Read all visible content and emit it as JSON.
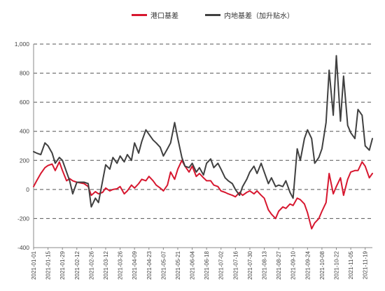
{
  "chart_data": {
    "type": "line",
    "title": "",
    "xlabel": "",
    "ylabel": "",
    "ylim": [
      -400,
      1000
    ],
    "yticks": [
      -400,
      -200,
      0,
      200,
      400,
      600,
      800,
      1000
    ],
    "ytick_labels": [
      "-400",
      "-200",
      "0",
      "200",
      "400",
      "600",
      "800",
      "1,000"
    ],
    "grid": "horizontal-dashed",
    "legend_position": "top-center",
    "x_range": [
      "2021-01-01",
      "2021-11-26"
    ],
    "xtick_labels": [
      "2021-01-01",
      "2021-01-15",
      "2021-01-29",
      "2021-02-12",
      "2021-02-26",
      "2021-03-12",
      "2021-03-26",
      "2021-04-09",
      "2021-04-23",
      "2021-05-07",
      "2021-05-21",
      "2021-06-04",
      "2021-06-18",
      "2021-07-02",
      "2021-07-16",
      "2021-07-30",
      "2021-08-13",
      "2021-08-27",
      "2021-09-10",
      "2021-09-24",
      "2021-10-08",
      "2021-10-22",
      "2021-11-05",
      "2021-11-19"
    ],
    "series": [
      {
        "name": "港口基差",
        "color": "#d7172f",
        "points": [
          [
            "2021-01-01",
            20
          ],
          [
            "2021-01-04",
            60
          ],
          [
            "2021-01-08",
            110
          ],
          [
            "2021-01-12",
            150
          ],
          [
            "2021-01-15",
            165
          ],
          [
            "2021-01-19",
            175
          ],
          [
            "2021-01-22",
            130
          ],
          [
            "2021-01-26",
            190
          ],
          [
            "2021-01-29",
            130
          ],
          [
            "2021-02-02",
            60
          ],
          [
            "2021-02-05",
            75
          ],
          [
            "2021-02-08",
            60
          ],
          [
            "2021-02-12",
            50
          ],
          [
            "2021-02-19",
            40
          ],
          [
            "2021-02-23",
            20
          ],
          [
            "2021-02-26",
            -40
          ],
          [
            "2021-03-02",
            -15
          ],
          [
            "2021-03-05",
            -30
          ],
          [
            "2021-03-09",
            -20
          ],
          [
            "2021-03-12",
            10
          ],
          [
            "2021-03-16",
            -10
          ],
          [
            "2021-03-19",
            0
          ],
          [
            "2021-03-23",
            5
          ],
          [
            "2021-03-26",
            20
          ],
          [
            "2021-03-30",
            -30
          ],
          [
            "2021-04-02",
            -10
          ],
          [
            "2021-04-06",
            30
          ],
          [
            "2021-04-09",
            10
          ],
          [
            "2021-04-13",
            40
          ],
          [
            "2021-04-16",
            70
          ],
          [
            "2021-04-20",
            60
          ],
          [
            "2021-04-23",
            90
          ],
          [
            "2021-04-27",
            60
          ],
          [
            "2021-04-30",
            30
          ],
          [
            "2021-05-04",
            10
          ],
          [
            "2021-05-07",
            -10
          ],
          [
            "2021-05-11",
            30
          ],
          [
            "2021-05-14",
            120
          ],
          [
            "2021-05-18",
            70
          ],
          [
            "2021-05-21",
            140
          ],
          [
            "2021-05-25",
            200
          ],
          [
            "2021-05-28",
            160
          ],
          [
            "2021-06-01",
            120
          ],
          [
            "2021-06-04",
            160
          ],
          [
            "2021-06-08",
            90
          ],
          [
            "2021-06-11",
            110
          ],
          [
            "2021-06-15",
            80
          ],
          [
            "2021-06-18",
            60
          ],
          [
            "2021-06-22",
            60
          ],
          [
            "2021-06-25",
            30
          ],
          [
            "2021-06-29",
            20
          ],
          [
            "2021-07-02",
            -10
          ],
          [
            "2021-07-06",
            -20
          ],
          [
            "2021-07-09",
            -30
          ],
          [
            "2021-07-13",
            -40
          ],
          [
            "2021-07-16",
            -50
          ],
          [
            "2021-07-20",
            -20
          ],
          [
            "2021-07-23",
            -40
          ],
          [
            "2021-07-27",
            -20
          ],
          [
            "2021-07-30",
            -10
          ],
          [
            "2021-08-03",
            -30
          ],
          [
            "2021-08-06",
            -10
          ],
          [
            "2021-08-10",
            -40
          ],
          [
            "2021-08-13",
            -60
          ],
          [
            "2021-08-17",
            -140
          ],
          [
            "2021-08-20",
            -170
          ],
          [
            "2021-08-24",
            -200
          ],
          [
            "2021-08-27",
            -150
          ],
          [
            "2021-08-31",
            -120
          ],
          [
            "2021-09-03",
            -130
          ],
          [
            "2021-09-07",
            -100
          ],
          [
            "2021-09-10",
            -110
          ],
          [
            "2021-09-14",
            -60
          ],
          [
            "2021-09-17",
            -70
          ],
          [
            "2021-09-21",
            -100
          ],
          [
            "2021-09-24",
            -160
          ],
          [
            "2021-09-28",
            -270
          ],
          [
            "2021-10-01",
            -230
          ],
          [
            "2021-10-05",
            -200
          ],
          [
            "2021-10-08",
            -150
          ],
          [
            "2021-10-12",
            -90
          ],
          [
            "2021-10-15",
            110
          ],
          [
            "2021-10-19",
            -30
          ],
          [
            "2021-10-22",
            20
          ],
          [
            "2021-10-26",
            80
          ],
          [
            "2021-10-29",
            -40
          ],
          [
            "2021-11-02",
            70
          ],
          [
            "2021-11-05",
            120
          ],
          [
            "2021-11-09",
            130
          ],
          [
            "2021-11-12",
            130
          ],
          [
            "2021-11-16",
            190
          ],
          [
            "2021-11-19",
            160
          ],
          [
            "2021-11-23",
            80
          ],
          [
            "2021-11-26",
            110
          ]
        ]
      },
      {
        "name": "内地基差（加升贴水）",
        "color": "#404040",
        "points": [
          [
            "2021-01-01",
            260
          ],
          [
            "2021-01-04",
            250
          ],
          [
            "2021-01-08",
            240
          ],
          [
            "2021-01-12",
            320
          ],
          [
            "2021-01-15",
            300
          ],
          [
            "2021-01-19",
            250
          ],
          [
            "2021-01-22",
            180
          ],
          [
            "2021-01-26",
            220
          ],
          [
            "2021-01-29",
            200
          ],
          [
            "2021-02-02",
            120
          ],
          [
            "2021-02-05",
            60
          ],
          [
            "2021-02-08",
            -30
          ],
          [
            "2021-02-12",
            50
          ],
          [
            "2021-02-19",
            50
          ],
          [
            "2021-02-23",
            40
          ],
          [
            "2021-02-26",
            -120
          ],
          [
            "2021-03-02",
            -60
          ],
          [
            "2021-03-05",
            -90
          ],
          [
            "2021-03-09",
            60
          ],
          [
            "2021-03-12",
            170
          ],
          [
            "2021-03-16",
            140
          ],
          [
            "2021-03-19",
            220
          ],
          [
            "2021-03-23",
            180
          ],
          [
            "2021-03-26",
            230
          ],
          [
            "2021-03-30",
            190
          ],
          [
            "2021-04-02",
            240
          ],
          [
            "2021-04-06",
            200
          ],
          [
            "2021-04-09",
            320
          ],
          [
            "2021-04-13",
            250
          ],
          [
            "2021-04-16",
            330
          ],
          [
            "2021-04-20",
            410
          ],
          [
            "2021-04-23",
            380
          ],
          [
            "2021-04-27",
            340
          ],
          [
            "2021-04-30",
            320
          ],
          [
            "2021-05-04",
            290
          ],
          [
            "2021-05-07",
            230
          ],
          [
            "2021-05-11",
            280
          ],
          [
            "2021-05-14",
            320
          ],
          [
            "2021-05-18",
            460
          ],
          [
            "2021-05-21",
            350
          ],
          [
            "2021-05-25",
            220
          ],
          [
            "2021-05-28",
            160
          ],
          [
            "2021-06-01",
            150
          ],
          [
            "2021-06-04",
            180
          ],
          [
            "2021-06-08",
            120
          ],
          [
            "2021-06-11",
            150
          ],
          [
            "2021-06-15",
            100
          ],
          [
            "2021-06-18",
            180
          ],
          [
            "2021-06-22",
            210
          ],
          [
            "2021-06-25",
            150
          ],
          [
            "2021-06-29",
            180
          ],
          [
            "2021-07-02",
            140
          ],
          [
            "2021-07-06",
            80
          ],
          [
            "2021-07-09",
            60
          ],
          [
            "2021-07-13",
            40
          ],
          [
            "2021-07-16",
            0
          ],
          [
            "2021-07-20",
            -40
          ],
          [
            "2021-07-23",
            20
          ],
          [
            "2021-07-27",
            70
          ],
          [
            "2021-07-30",
            120
          ],
          [
            "2021-08-03",
            160
          ],
          [
            "2021-08-06",
            110
          ],
          [
            "2021-08-10",
            180
          ],
          [
            "2021-08-13",
            120
          ],
          [
            "2021-08-17",
            40
          ],
          [
            "2021-08-20",
            80
          ],
          [
            "2021-08-24",
            20
          ],
          [
            "2021-08-27",
            30
          ],
          [
            "2021-08-31",
            20
          ],
          [
            "2021-09-03",
            60
          ],
          [
            "2021-09-07",
            -20
          ],
          [
            "2021-09-10",
            -60
          ],
          [
            "2021-09-14",
            280
          ],
          [
            "2021-09-17",
            200
          ],
          [
            "2021-09-21",
            350
          ],
          [
            "2021-09-24",
            410
          ],
          [
            "2021-09-28",
            350
          ],
          [
            "2021-10-01",
            180
          ],
          [
            "2021-10-05",
            220
          ],
          [
            "2021-10-08",
            280
          ],
          [
            "2021-10-12",
            460
          ],
          [
            "2021-10-15",
            820
          ],
          [
            "2021-10-19",
            510
          ],
          [
            "2021-10-22",
            920
          ],
          [
            "2021-10-26",
            470
          ],
          [
            "2021-10-29",
            780
          ],
          [
            "2021-11-02",
            440
          ],
          [
            "2021-11-05",
            390
          ],
          [
            "2021-11-09",
            350
          ],
          [
            "2021-11-12",
            550
          ],
          [
            "2021-11-16",
            510
          ],
          [
            "2021-11-19",
            300
          ],
          [
            "2021-11-23",
            270
          ],
          [
            "2021-11-26",
            350
          ]
        ]
      }
    ]
  }
}
